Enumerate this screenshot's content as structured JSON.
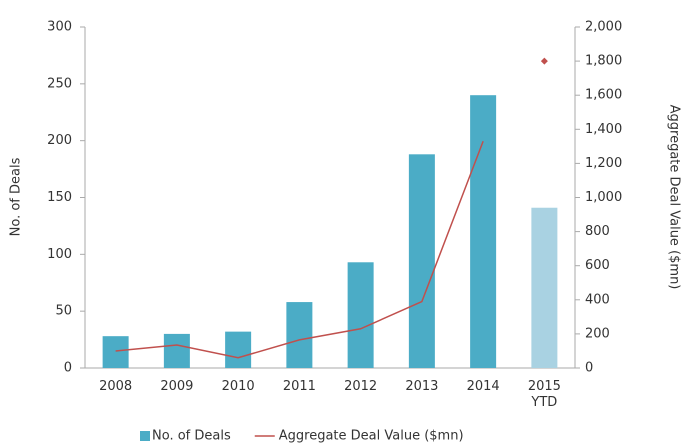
{
  "chart_data": {
    "type": "bar",
    "categories": [
      "2008",
      "2009",
      "2010",
      "2011",
      "2012",
      "2013",
      "2014",
      "2015 YTD"
    ],
    "series": [
      {
        "name": "No. of Deals",
        "type": "bar",
        "color": "#4bacc6",
        "colors": [
          "#4bacc6",
          "#4bacc6",
          "#4bacc6",
          "#4bacc6",
          "#4bacc6",
          "#4bacc6",
          "#4bacc6",
          "#a9d2e2"
        ],
        "values": [
          28,
          30,
          32,
          58,
          93,
          188,
          240,
          141
        ]
      },
      {
        "name": "Aggregate Deal Value ($mn)",
        "type": "line",
        "axis": "y2",
        "color": "#c0504d",
        "styles": [
          "line",
          "line",
          "line",
          "line",
          "line",
          "line",
          "line",
          "marker"
        ],
        "values": [
          100,
          135,
          60,
          165,
          230,
          390,
          1330,
          1800
        ]
      }
    ],
    "ylabel": "No. of Deals",
    "y2label": "Aggregate Deal Value ($mn)",
    "ylim": [
      0,
      300
    ],
    "yticks": [
      0,
      50,
      100,
      150,
      200,
      250,
      300
    ],
    "y2lim": [
      0,
      2000
    ],
    "y2ticks": [
      0,
      200,
      400,
      600,
      800,
      1000,
      1200,
      1400,
      1600,
      1800,
      2000
    ],
    "y2tick_labels_fmt": null,
    "legend": "bottom"
  }
}
